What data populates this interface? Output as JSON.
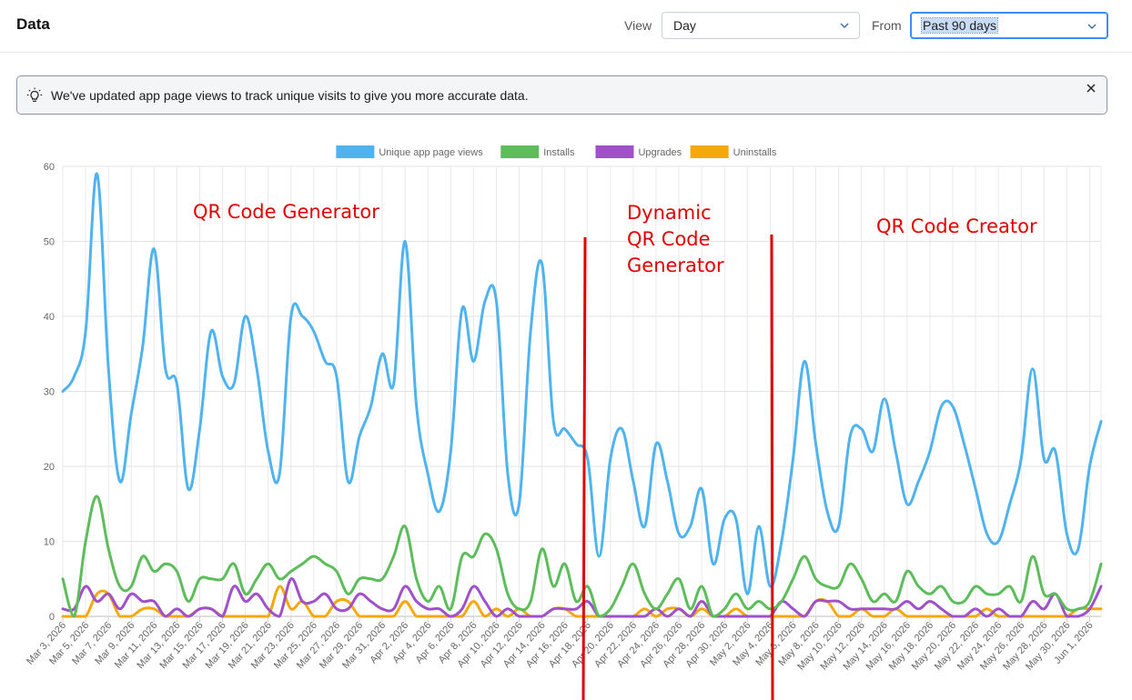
{
  "header": {
    "title": "Data",
    "view_label": "View",
    "view_value": "Day",
    "from_label": "From",
    "from_value": "Past 90 days"
  },
  "banner": {
    "message": "We've updated app page views to track unique visits to give you more accurate data.",
    "icon": "lightbulb-icon",
    "close_icon": "close-icon"
  },
  "chart_data": {
    "type": "line",
    "ylim": [
      0,
      60
    ],
    "yticks": [
      0,
      10,
      20,
      30,
      40,
      50,
      60
    ],
    "grid": true,
    "legend_position": "top-center",
    "x": [
      "Mar 3, 2026",
      "Mar 4, 2026",
      "Mar 5, 2026",
      "Mar 6, 2026",
      "Mar 7, 2026",
      "Mar 8, 2026",
      "Mar 9, 2026",
      "Mar 10, 2026",
      "Mar 11, 2026",
      "Mar 12, 2026",
      "Mar 13, 2026",
      "Mar 14, 2026",
      "Mar 15, 2026",
      "Mar 16, 2026",
      "Mar 17, 2026",
      "Mar 18, 2026",
      "Mar 19, 2026",
      "Mar 20, 2026",
      "Mar 21, 2026",
      "Mar 22, 2026",
      "Mar 23, 2026",
      "Mar 24, 2026",
      "Mar 25, 2026",
      "Mar 26, 2026",
      "Mar 27, 2026",
      "Mar 28, 2026",
      "Mar 29, 2026",
      "Mar 30, 2026",
      "Mar 31, 2026",
      "Apr 1, 2026",
      "Apr 2, 2026",
      "Apr 3, 2026",
      "Apr 4, 2026",
      "Apr 5, 2026",
      "Apr 6, 2026",
      "Apr 7, 2026",
      "Apr 8, 2026",
      "Apr 9, 2026",
      "Apr 10, 2026",
      "Apr 11, 2026",
      "Apr 12, 2026",
      "Apr 13, 2026",
      "Apr 14, 2026",
      "Apr 15, 2026",
      "Apr 16, 2026",
      "Apr 17, 2026",
      "Apr 18, 2026",
      "Apr 19, 2026",
      "Apr 20, 2026",
      "Apr 21, 2026",
      "Apr 22, 2026",
      "Apr 23, 2026",
      "Apr 24, 2026",
      "Apr 25, 2026",
      "Apr 26, 2026",
      "Apr 27, 2026",
      "Apr 28, 2026",
      "Apr 29, 2026",
      "Apr 30, 2026",
      "May 1, 2026",
      "May 2, 2026",
      "May 3, 2026",
      "May 4, 2026",
      "May 5, 2026",
      "May 6, 2026",
      "May 7, 2026",
      "May 8, 2026",
      "May 9, 2026",
      "May 10, 2026",
      "May 11, 2026",
      "May 12, 2026",
      "May 13, 2026",
      "May 14, 2026",
      "May 15, 2026",
      "May 16, 2026",
      "May 17, 2026",
      "May 18, 2026",
      "May 19, 2026",
      "May 20, 2026",
      "May 21, 2026",
      "May 22, 2026",
      "May 23, 2026",
      "May 24, 2026",
      "May 25, 2026",
      "May 26, 2026",
      "May 27, 2026",
      "May 28, 2026",
      "May 29, 2026",
      "May 30, 2026",
      "May 31, 2026",
      "Jun 1, 2026",
      "Jun 2, 2026"
    ],
    "tick_labels": [
      "Mar 3, 2026",
      "Mar 5, 2026",
      "Mar 7, 2026",
      "Mar 9, 2026",
      "Mar 11, 2026",
      "Mar 13, 2026",
      "Mar 15, 2026",
      "Mar 17, 2026",
      "Mar 19, 2026",
      "Mar 21, 2026",
      "Mar 23, 2026",
      "Mar 25, 2026",
      "Mar 27, 2026",
      "Mar 29, 2026",
      "Mar 31, 2026",
      "Apr 2, 2026",
      "Apr 4, 2026",
      "Apr 6, 2026",
      "Apr 8, 2026",
      "Apr 10, 2026",
      "Apr 12, 2026",
      "Apr 14, 2026",
      "Apr 16, 2026",
      "Apr 18, 2026",
      "Apr 20, 2026",
      "Apr 22, 2026",
      "Apr 24, 2026",
      "Apr 26, 2026",
      "Apr 28, 2026",
      "Apr 30, 2026",
      "May 2, 2026",
      "May 4, 2026",
      "May 6, 2026",
      "May 8, 2026",
      "May 10, 2026",
      "May 12, 2026",
      "May 14, 2026",
      "May 16, 2026",
      "May 18, 2026",
      "May 20, 2026",
      "May 22, 2026",
      "May 24, 2026",
      "May 26, 2026",
      "May 28, 2026",
      "May 30, 2026",
      "Jun 1, 2026"
    ],
    "series": [
      {
        "name": "Unique app page views",
        "color": "#4fb3ef",
        "values": [
          30,
          32,
          38,
          59,
          33,
          18,
          27,
          36,
          49,
          33,
          31,
          17,
          25,
          38,
          32,
          31,
          40,
          33,
          22,
          19,
          40,
          40,
          38,
          34,
          32,
          18,
          24,
          28,
          35,
          31,
          50,
          28,
          19,
          14,
          22,
          41,
          34,
          42,
          42,
          19,
          15,
          38,
          47,
          26,
          25,
          23,
          21,
          8,
          21,
          25,
          18,
          12,
          23,
          18,
          11,
          12,
          17,
          7,
          13,
          13,
          3,
          12,
          4,
          10,
          21,
          34,
          23,
          14,
          12,
          24,
          25,
          22,
          29,
          22,
          15,
          18,
          22,
          28,
          28,
          23,
          17,
          11,
          10,
          15,
          21,
          33,
          21,
          22,
          11,
          9,
          20,
          26
        ]
      },
      {
        "name": "Installs",
        "color": "#5cbd5a",
        "values": [
          5,
          0,
          10,
          16,
          9,
          4,
          4,
          8,
          6,
          7,
          6,
          2,
          5,
          5,
          5,
          7,
          3,
          5,
          7,
          5,
          6,
          7,
          8,
          7,
          6,
          3,
          5,
          5,
          5,
          8,
          12,
          5,
          2,
          4,
          1,
          8,
          8,
          11,
          9,
          3,
          1,
          2,
          9,
          4,
          7,
          2,
          4,
          0,
          1,
          4,
          7,
          3,
          1,
          3,
          5,
          1,
          4,
          0,
          1,
          3,
          1,
          2,
          1,
          2,
          5,
          8,
          5,
          4,
          4,
          7,
          5,
          2,
          3,
          2,
          6,
          4,
          3,
          4,
          2,
          2,
          4,
          3,
          3,
          4,
          2,
          8,
          3,
          3,
          1,
          1,
          2,
          7
        ]
      },
      {
        "name": "Upgrades",
        "color": "#a050c8",
        "values": [
          1,
          1,
          4,
          2,
          3,
          1,
          3,
          2,
          2,
          0,
          1,
          0,
          1,
          1,
          0,
          4,
          2,
          3,
          1,
          0,
          5,
          2,
          2,
          3,
          1,
          1,
          3,
          2,
          1,
          1,
          4,
          2,
          1,
          1,
          0,
          1,
          4,
          2,
          0,
          1,
          0,
          0,
          0,
          1,
          1,
          1,
          2,
          0,
          0,
          0,
          0,
          0,
          1,
          0,
          1,
          0,
          2,
          0,
          0,
          0,
          0,
          0,
          0,
          2,
          1,
          0,
          2,
          2,
          2,
          1,
          1,
          1,
          1,
          1,
          2,
          1,
          2,
          1,
          0,
          0,
          1,
          0,
          1,
          0,
          0,
          2,
          1,
          3,
          0,
          0,
          1,
          4
        ]
      },
      {
        "name": "Uninstalls",
        "color": "#f5a80a",
        "values": [
          0,
          0,
          0,
          3,
          3,
          0,
          0,
          1,
          1,
          0,
          0,
          0,
          1,
          1,
          0,
          0,
          0,
          0,
          0,
          4,
          1,
          2,
          0,
          0,
          2,
          2,
          0,
          0,
          0,
          0,
          2,
          0,
          0,
          0,
          0,
          0,
          2,
          0,
          1,
          0,
          1,
          0,
          0,
          1,
          1,
          0,
          0,
          0,
          0,
          0,
          0,
          1,
          0,
          1,
          1,
          0,
          1,
          0,
          0,
          1,
          0,
          0,
          0,
          0,
          0,
          0,
          2,
          2,
          0,
          0,
          1,
          0,
          0,
          1,
          0,
          0,
          0,
          0,
          0,
          0,
          0,
          1,
          0,
          0,
          0,
          0,
          0,
          0,
          0,
          1,
          1,
          1
        ]
      }
    ]
  },
  "annotations": [
    {
      "lines": [
        "QR Code Generator"
      ]
    },
    {
      "lines": [
        "Dynamic",
        "QR Code",
        "Generator"
      ]
    },
    {
      "lines": [
        "QR Code Creator"
      ]
    }
  ],
  "annotation_color": "#e00000"
}
